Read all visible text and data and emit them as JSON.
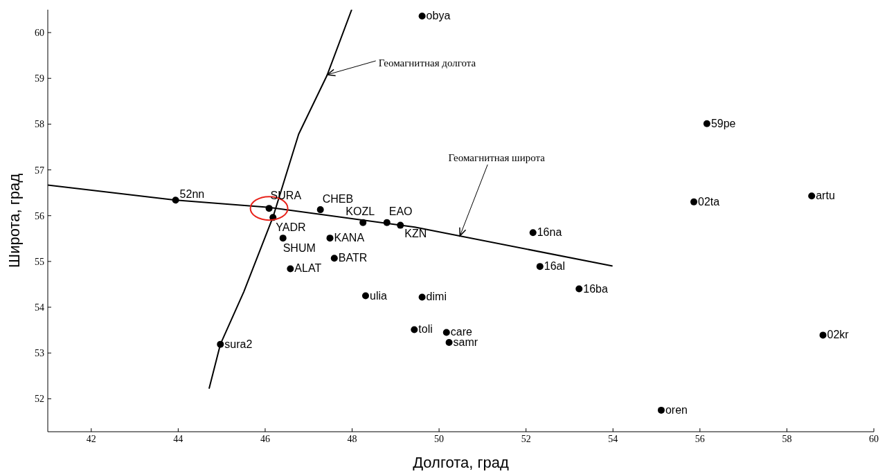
{
  "chart_data": {
    "type": "scatter",
    "xlabel": "Долгота, град",
    "ylabel": "Широта, град",
    "xlim": [
      41,
      60
    ],
    "ylim": [
      51.28,
      60.5
    ],
    "xticks": [
      42,
      44,
      46,
      48,
      50,
      52,
      54,
      56,
      58,
      60
    ],
    "yticks": [
      52,
      53,
      54,
      55,
      56,
      57,
      58,
      59,
      60
    ],
    "grid": false,
    "marker": "circle",
    "annotations": [
      {
        "text": "Геомагнитная долгота",
        "x": 47.43,
        "y": 59.08
      },
      {
        "text": "Геомагнитная широта",
        "x": 50.48,
        "y": 55.56
      }
    ],
    "series": [
      {
        "type": "line",
        "marker": "none",
        "color": "#000000",
        "x": [
          44.71,
          44.97,
          45.51,
          46.18,
          46.77,
          47.43,
          47.99
        ],
        "values": [
          52.22,
          53.19,
          54.34,
          55.97,
          57.78,
          59.08,
          60.5
        ]
      },
      {
        "type": "line",
        "marker": "none",
        "color": "#000000",
        "x": [
          41,
          43.94,
          46.09,
          49.44,
          53.99
        ],
        "values": [
          56.67,
          56.34,
          56.18,
          55.75,
          54.9
        ]
      },
      {
        "name": "obya",
        "color": "#000000",
        "x": [
          49.61
        ],
        "values": [
          60.36
        ]
      },
      {
        "name": "59pe",
        "color": "#000000",
        "x": [
          56.16
        ],
        "values": [
          58.01
        ]
      },
      {
        "name": "artu",
        "color": "#000000",
        "x": [
          58.57
        ],
        "values": [
          56.43
        ]
      },
      {
        "name": "02ta",
        "color": "#000000",
        "x": [
          55.86
        ],
        "values": [
          56.3
        ]
      },
      {
        "name": "52nn",
        "color": "#000000",
        "x": [
          43.94
        ],
        "values": [
          56.34
        ]
      },
      {
        "name": "SURA",
        "color": "#000000",
        "x": [
          46.09
        ],
        "values": [
          56.16
        ]
      },
      {
        "name": "CHEB",
        "color": "#000000",
        "x": [
          47.27
        ],
        "values": [
          56.13
        ]
      },
      {
        "name": "KOZL",
        "color": "#000000",
        "x": [
          48.25
        ],
        "values": [
          55.85
        ]
      },
      {
        "name": "EAO",
        "color": "#000000",
        "x": [
          48.8
        ],
        "values": [
          55.85
        ]
      },
      {
        "name": "KZN",
        "color": "#000000",
        "x": [
          49.11
        ],
        "values": [
          55.79
        ]
      },
      {
        "name": "YADR",
        "color": "#000000",
        "x": [
          46.18
        ],
        "values": [
          55.96
        ]
      },
      {
        "name": "SHUM",
        "color": "#000000",
        "x": [
          46.41
        ],
        "values": [
          55.51
        ]
      },
      {
        "name": "KANA",
        "color": "#000000",
        "x": [
          47.49
        ],
        "values": [
          55.51
        ]
      },
      {
        "name": "BATR",
        "color": "#000000",
        "x": [
          47.59
        ],
        "values": [
          55.07
        ]
      },
      {
        "name": "ALAT",
        "color": "#000000",
        "x": [
          46.58
        ],
        "values": [
          54.84
        ]
      },
      {
        "name": "16na",
        "color": "#000000",
        "x": [
          52.16
        ],
        "values": [
          55.63
        ]
      },
      {
        "name": "16al",
        "color": "#000000",
        "x": [
          52.32
        ],
        "values": [
          54.89
        ]
      },
      {
        "name": "16ba",
        "color": "#000000",
        "x": [
          53.22
        ],
        "values": [
          54.4
        ]
      },
      {
        "name": "ulia",
        "color": "#000000",
        "x": [
          48.31
        ],
        "values": [
          54.25
        ]
      },
      {
        "name": "dimi",
        "color": "#000000",
        "x": [
          49.61
        ],
        "values": [
          54.22
        ]
      },
      {
        "name": "toli",
        "color": "#000000",
        "x": [
          49.43
        ],
        "values": [
          53.51
        ]
      },
      {
        "name": "care",
        "color": "#000000",
        "x": [
          50.17
        ],
        "values": [
          53.45
        ]
      },
      {
        "name": "samr",
        "color": "#000000",
        "x": [
          50.23
        ],
        "values": [
          53.23
        ]
      },
      {
        "name": "02kr",
        "color": "#000000",
        "x": [
          58.83
        ],
        "values": [
          53.39
        ]
      },
      {
        "name": "sura2",
        "color": "#000000",
        "x": [
          44.97
        ],
        "values": [
          53.19
        ]
      },
      {
        "name": "oren",
        "color": "#000000",
        "x": [
          55.11
        ],
        "values": [
          51.75
        ]
      }
    ]
  }
}
